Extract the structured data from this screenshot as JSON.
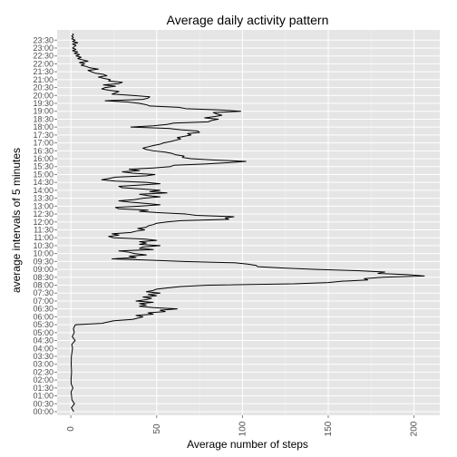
{
  "chart_data": {
    "type": "line",
    "title": "Average daily activity pattern",
    "xlabel": "Average number of steps",
    "ylabel": "average intervals of 5 minutes",
    "xlim": [
      -8,
      215
    ],
    "ylim": [
      "00:00",
      "23:55"
    ],
    "x_ticks": [
      "0",
      "50",
      "100",
      "150",
      "200"
    ],
    "x_tick_values": [
      0,
      50,
      100,
      150,
      200
    ],
    "y_ticks": [
      "00:00",
      "00:30",
      "01:00",
      "01:30",
      "02:00",
      "02:30",
      "03:00",
      "03:30",
      "04:00",
      "04:30",
      "05:00",
      "05:30",
      "06:00",
      "06:30",
      "07:00",
      "07:30",
      "08:00",
      "08:30",
      "09:00",
      "09:30",
      "10:00",
      "10:30",
      "11:00",
      "11:30",
      "12:00",
      "12:30",
      "13:00",
      "13:30",
      "14:00",
      "14:30",
      "15:00",
      "15:30",
      "16:00",
      "16:30",
      "17:00",
      "17:30",
      "18:00",
      "18:30",
      "19:00",
      "19:30",
      "20:00",
      "20:30",
      "21:00",
      "21:30",
      "22:00",
      "22:30",
      "23:00",
      "23:30"
    ],
    "grid": true,
    "legend": "none",
    "colors": {
      "panel": "#e5e5e5",
      "grid": "#ffffff",
      "line": "#000000",
      "tick_text": "#4d4d4d"
    },
    "series": [
      {
        "points": [
          [
            "00:00",
            1.7
          ],
          [
            "00:15",
            0.3
          ],
          [
            "00:30",
            2.1
          ],
          [
            "00:45",
            0.6
          ],
          [
            "01:00",
            0.4
          ],
          [
            "01:15",
            0.1
          ],
          [
            "01:30",
            1.2
          ],
          [
            "01:45",
            0.2
          ],
          [
            "02:00",
            0.1
          ],
          [
            "02:30",
            0.4
          ],
          [
            "03:00",
            0.2
          ],
          [
            "03:30",
            0.3
          ],
          [
            "04:00",
            1.0
          ],
          [
            "04:15",
            0.5
          ],
          [
            "04:30",
            2.5
          ],
          [
            "04:45",
            0.8
          ],
          [
            "05:00",
            2.0
          ],
          [
            "05:15",
            1.5
          ],
          [
            "05:30",
            2.6
          ],
          [
            "05:35",
            18
          ],
          [
            "05:45",
            25
          ],
          [
            "05:50",
            36
          ],
          [
            "06:00",
            42
          ],
          [
            "06:05",
            38
          ],
          [
            "06:10",
            48
          ],
          [
            "06:15",
            45
          ],
          [
            "06:20",
            55
          ],
          [
            "06:25",
            52
          ],
          [
            "06:30",
            62
          ],
          [
            "06:35",
            48
          ],
          [
            "06:40",
            40
          ],
          [
            "06:45",
            44
          ],
          [
            "06:50",
            40
          ],
          [
            "06:55",
            48
          ],
          [
            "07:00",
            38
          ],
          [
            "07:05",
            44
          ],
          [
            "07:10",
            47
          ],
          [
            "07:15",
            42
          ],
          [
            "07:20",
            50
          ],
          [
            "07:25",
            45
          ],
          [
            "07:30",
            52
          ],
          [
            "07:35",
            44
          ],
          [
            "07:40",
            48
          ],
          [
            "07:45",
            50
          ],
          [
            "07:50",
            57
          ],
          [
            "07:55",
            64
          ],
          [
            "08:00",
            80
          ],
          [
            "08:05",
            130
          ],
          [
            "08:10",
            150
          ],
          [
            "08:15",
            158
          ],
          [
            "08:20",
            173
          ],
          [
            "08:25",
            171
          ],
          [
            "08:30",
            182
          ],
          [
            "08:35",
            206
          ],
          [
            "08:40",
            196
          ],
          [
            "08:45",
            179
          ],
          [
            "08:50",
            183
          ],
          [
            "08:55",
            167
          ],
          [
            "09:00",
            143
          ],
          [
            "09:05",
            124
          ],
          [
            "09:10",
            109
          ],
          [
            "09:15",
            108
          ],
          [
            "09:20",
            103
          ],
          [
            "09:25",
            96
          ],
          [
            "09:30",
            66
          ],
          [
            "09:35",
            45
          ],
          [
            "09:40",
            24
          ],
          [
            "09:45",
            38
          ],
          [
            "09:50",
            34
          ],
          [
            "09:55",
            44
          ],
          [
            "10:00",
            37
          ],
          [
            "10:05",
            34
          ],
          [
            "10:10",
            28
          ],
          [
            "10:15",
            48
          ],
          [
            "10:20",
            40
          ],
          [
            "10:25",
            42
          ],
          [
            "10:30",
            52
          ],
          [
            "10:35",
            40
          ],
          [
            "10:40",
            44
          ],
          [
            "10:45",
            40
          ],
          [
            "10:50",
            50
          ],
          [
            "10:55",
            43
          ],
          [
            "11:00",
            25
          ],
          [
            "11:05",
            22
          ],
          [
            "11:10",
            28
          ],
          [
            "11:15",
            24
          ],
          [
            "11:20",
            35
          ],
          [
            "11:25",
            38
          ],
          [
            "11:30",
            43
          ],
          [
            "11:35",
            39
          ],
          [
            "11:40",
            44
          ],
          [
            "11:45",
            45
          ],
          [
            "11:50",
            48
          ],
          [
            "11:55",
            50
          ],
          [
            "12:00",
            56
          ],
          [
            "12:05",
            64
          ],
          [
            "12:10",
            92
          ],
          [
            "12:15",
            90
          ],
          [
            "12:20",
            95
          ],
          [
            "12:25",
            73
          ],
          [
            "12:30",
            67
          ],
          [
            "12:35",
            52
          ],
          [
            "12:40",
            40
          ],
          [
            "12:45",
            45
          ],
          [
            "12:50",
            28
          ],
          [
            "12:55",
            26
          ],
          [
            "13:00",
            40
          ],
          [
            "13:05",
            52
          ],
          [
            "13:10",
            44
          ],
          [
            "13:15",
            35
          ],
          [
            "13:20",
            28
          ],
          [
            "13:25",
            37
          ],
          [
            "13:30",
            42
          ],
          [
            "13:35",
            52
          ],
          [
            "13:40",
            45
          ],
          [
            "13:45",
            40
          ],
          [
            "13:50",
            56
          ],
          [
            "13:55",
            46
          ],
          [
            "14:00",
            52
          ],
          [
            "14:05",
            42
          ],
          [
            "14:10",
            30
          ],
          [
            "14:15",
            28
          ],
          [
            "14:20",
            40
          ],
          [
            "14:25",
            52
          ],
          [
            "14:30",
            44
          ],
          [
            "14:35",
            26
          ],
          [
            "14:40",
            18
          ],
          [
            "14:45",
            22
          ],
          [
            "14:50",
            26
          ],
          [
            "14:55",
            44
          ],
          [
            "15:00",
            49
          ],
          [
            "15:05",
            36
          ],
          [
            "15:10",
            30
          ],
          [
            "15:15",
            40
          ],
          [
            "15:20",
            34
          ],
          [
            "15:25",
            48
          ],
          [
            "15:30",
            58
          ],
          [
            "15:35",
            60
          ],
          [
            "15:40",
            78
          ],
          [
            "15:45",
            92
          ],
          [
            "15:50",
            102
          ],
          [
            "15:55",
            84
          ],
          [
            "16:00",
            70
          ],
          [
            "16:05",
            65
          ],
          [
            "16:10",
            66
          ],
          [
            "16:15",
            61
          ],
          [
            "16:20",
            59
          ],
          [
            "16:25",
            55
          ],
          [
            "16:30",
            48
          ],
          [
            "16:35",
            44
          ],
          [
            "16:40",
            42
          ],
          [
            "16:45",
            45
          ],
          [
            "16:50",
            48
          ],
          [
            "16:55",
            52
          ],
          [
            "17:00",
            54
          ],
          [
            "17:05",
            58
          ],
          [
            "17:10",
            61
          ],
          [
            "17:15",
            64
          ],
          [
            "17:20",
            62
          ],
          [
            "17:25",
            66
          ],
          [
            "17:30",
            70
          ],
          [
            "17:35",
            68
          ],
          [
            "17:40",
            75
          ],
          [
            "17:45",
            74
          ],
          [
            "17:50",
            64
          ],
          [
            "17:55",
            57
          ],
          [
            "18:00",
            35
          ],
          [
            "18:05",
            48
          ],
          [
            "18:10",
            56
          ],
          [
            "18:15",
            60
          ],
          [
            "18:20",
            80
          ],
          [
            "18:25",
            82
          ],
          [
            "18:30",
            86
          ],
          [
            "18:35",
            78
          ],
          [
            "18:40",
            84
          ],
          [
            "18:45",
            88
          ],
          [
            "18:50",
            85
          ],
          [
            "18:55",
            83
          ],
          [
            "19:00",
            99
          ],
          [
            "19:05",
            87
          ],
          [
            "19:10",
            67
          ],
          [
            "19:15",
            63
          ],
          [
            "19:20",
            46
          ],
          [
            "19:25",
            44
          ],
          [
            "19:30",
            40
          ],
          [
            "19:35",
            33
          ],
          [
            "19:40",
            20
          ],
          [
            "19:45",
            42
          ],
          [
            "19:50",
            45
          ],
          [
            "19:55",
            46
          ],
          [
            "20:00",
            36
          ],
          [
            "20:05",
            24
          ],
          [
            "20:10",
            26
          ],
          [
            "20:15",
            28
          ],
          [
            "20:20",
            22
          ],
          [
            "20:25",
            18
          ],
          [
            "20:30",
            20
          ],
          [
            "20:35",
            26
          ],
          [
            "20:40",
            19
          ],
          [
            "20:45",
            28
          ],
          [
            "20:50",
            30
          ],
          [
            "20:55",
            22
          ],
          [
            "21:00",
            23
          ],
          [
            "21:05",
            19
          ],
          [
            "21:10",
            16
          ],
          [
            "21:15",
            21
          ],
          [
            "21:20",
            19
          ],
          [
            "21:25",
            14
          ],
          [
            "21:30",
            12
          ],
          [
            "21:35",
            10
          ],
          [
            "21:40",
            16
          ],
          [
            "21:45",
            11
          ],
          [
            "21:50",
            9
          ],
          [
            "21:55",
            6
          ],
          [
            "22:00",
            8
          ],
          [
            "22:05",
            5
          ],
          [
            "22:10",
            10
          ],
          [
            "22:15",
            7
          ],
          [
            "22:20",
            4
          ],
          [
            "22:25",
            6
          ],
          [
            "22:30",
            3
          ],
          [
            "22:35",
            5
          ],
          [
            "22:40",
            2
          ],
          [
            "22:45",
            4
          ],
          [
            "22:50",
            1
          ],
          [
            "22:55",
            3
          ],
          [
            "23:00",
            1
          ],
          [
            "23:05",
            2
          ],
          [
            "23:10",
            3
          ],
          [
            "23:15",
            1
          ],
          [
            "23:20",
            4
          ],
          [
            "23:25",
            1
          ],
          [
            "23:30",
            2.5
          ],
          [
            "23:35",
            0.5
          ],
          [
            "23:40",
            1.5
          ],
          [
            "23:45",
            0.5
          ],
          [
            "23:50",
            1.5
          ],
          [
            "23:55",
            1
          ]
        ]
      }
    ]
  }
}
